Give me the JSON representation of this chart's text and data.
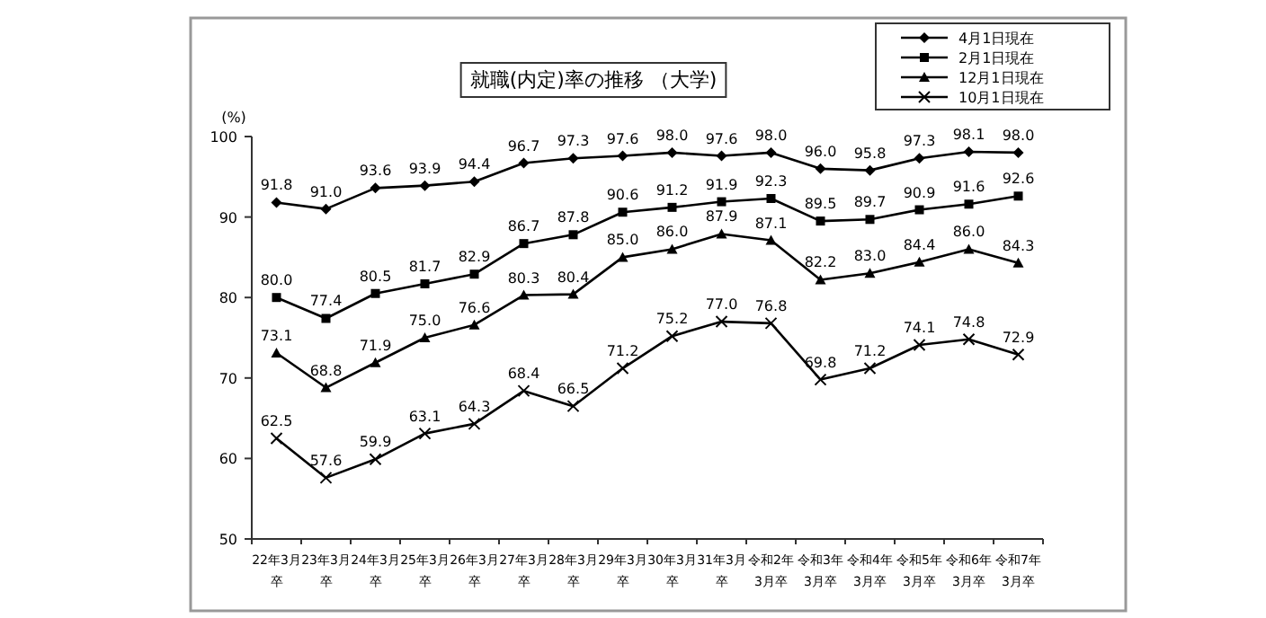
{
  "chart_data": {
    "type": "line",
    "title": "就職(内定)率の推移 （大学)",
    "ylabel": "(%)",
    "categories": [
      "22年3月卒",
      "23年3月卒",
      "24年3月卒",
      "25年3月卒",
      "26年3月卒",
      "27年3月卒",
      "28年3月卒",
      "29年3月卒",
      "30年3月卒",
      "31年3月卒",
      "令和2年3月卒",
      "令和3年3月卒",
      "令和4年3月卒",
      "令和5年3月卒",
      "令和6年3月卒",
      "令和7年3月卒"
    ],
    "series": [
      {
        "name": "4月1日現在",
        "color": "#000000",
        "marker": "diamond",
        "values": [
          91.8,
          91.0,
          93.6,
          93.9,
          94.4,
          96.7,
          97.3,
          97.6,
          98.0,
          97.6,
          98.0,
          96.0,
          95.8,
          97.3,
          98.1,
          98.0
        ],
        "value_labels": [
          "91.8",
          "91.0",
          "93.6",
          "93.9",
          "94.4",
          "96.7",
          "97.3",
          "97.6",
          "98.0",
          "97.6",
          "98.0",
          "96.0",
          "95.8",
          "97.3",
          "98.1",
          "98.0"
        ]
      },
      {
        "name": "2月1日現在",
        "color": "#000000",
        "marker": "square",
        "values": [
          80.0,
          77.4,
          80.5,
          81.7,
          82.9,
          86.7,
          87.8,
          90.6,
          91.2,
          91.9,
          92.3,
          89.5,
          89.7,
          90.9,
          91.6,
          92.6
        ],
        "value_labels": [
          "80.0",
          "77.4",
          "80.5",
          "81.7",
          "82.9",
          "86.7",
          "87.8",
          "90.6",
          "91.2",
          "91.9",
          "92.3",
          "89.5",
          "89.7",
          "90.9",
          "91.6",
          "92.6"
        ]
      },
      {
        "name": "12月1日現在",
        "color": "#000000",
        "marker": "triangle",
        "values": [
          73.1,
          68.8,
          71.9,
          75.0,
          76.6,
          80.3,
          80.4,
          85.0,
          86.0,
          87.9,
          87.1,
          82.2,
          83.0,
          84.4,
          86.0,
          84.3
        ],
        "value_labels": [
          "73.1",
          "68.8",
          "71.9",
          "75.0",
          "76.6",
          "80.3",
          "80.4",
          "85.0",
          "86.0",
          "87.9",
          "87.1",
          "82.2",
          "83.0",
          "84.4",
          "86.0",
          "84.3"
        ]
      },
      {
        "name": "10月1日現在",
        "color": "#000000",
        "marker": "cross",
        "values": [
          62.5,
          57.6,
          59.9,
          63.1,
          64.3,
          68.4,
          66.5,
          71.2,
          75.2,
          77.0,
          76.8,
          69.8,
          71.2,
          74.1,
          74.8,
          72.9
        ],
        "value_labels": [
          "62.5",
          "57.6",
          "59.9",
          "63.1",
          "64.3",
          "68.4",
          "66.5",
          "71.2",
          "75.2",
          "77.0",
          "76.8",
          "69.8",
          "71.2",
          "74.1",
          "74.8",
          "72.9"
        ]
      }
    ],
    "ylim": [
      50,
      100
    ],
    "yticks": [
      50,
      60,
      70,
      80,
      90,
      100
    ],
    "legend": "top right",
    "grid": false,
    "line_style": "solid"
  }
}
